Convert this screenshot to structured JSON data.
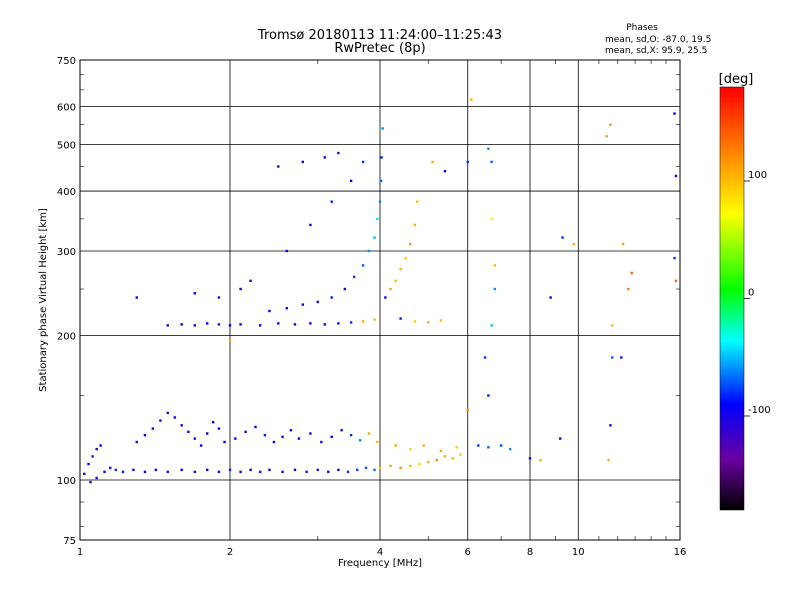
{
  "chart_data": {
    "type": "scatter",
    "title_line1": "Tromsø 20180113 11:24:00–11:25:43",
    "title_line2": "RwPretec (8p)",
    "xlabel": "Frequency [MHz]",
    "ylabel": "Stationary phase Virtual Height [km]",
    "x_scale": "log",
    "y_scale": "log",
    "xlim": [
      1,
      16
    ],
    "ylim": [
      75,
      750
    ],
    "x_ticks": [
      1,
      2,
      4,
      6,
      8,
      10,
      16
    ],
    "y_ticks": [
      75,
      100,
      200,
      300,
      400,
      500,
      600,
      750
    ],
    "grid": true,
    "stats": {
      "title": "Phases",
      "line_o": "mean, sd,O: -87.0, 19.5",
      "line_x": "mean, sd,X:  95.9, 25.5"
    },
    "colorbar": {
      "label": "[deg]",
      "range": [
        -180,
        180
      ],
      "ticks": [
        100,
        0,
        -100
      ],
      "tick_labels": [
        "100",
        "0",
        "-100"
      ]
    },
    "series": [
      {
        "points": [
          [
            1.02,
            103,
            -95
          ],
          [
            1.04,
            108,
            -90
          ],
          [
            1.06,
            112,
            -85
          ],
          [
            1.08,
            116,
            -100
          ],
          [
            1.1,
            118,
            -92
          ],
          [
            1.05,
            99,
            -110
          ],
          [
            1.08,
            101,
            -105
          ],
          [
            1.12,
            104,
            -90
          ],
          [
            1.15,
            106,
            -88
          ],
          [
            1.18,
            105,
            -80
          ],
          [
            1.22,
            104,
            -85
          ],
          [
            1.28,
            105,
            -92
          ],
          [
            1.35,
            104,
            -90
          ],
          [
            1.42,
            105,
            -95
          ],
          [
            1.5,
            104,
            -88
          ],
          [
            1.6,
            105,
            -90
          ],
          [
            1.7,
            104,
            -86
          ],
          [
            1.8,
            105,
            -92
          ],
          [
            1.9,
            104,
            -90
          ],
          [
            2.0,
            105,
            -84
          ],
          [
            2.1,
            104,
            -88
          ],
          [
            2.2,
            105,
            -90
          ],
          [
            2.3,
            104,
            -86
          ],
          [
            2.4,
            105,
            -92
          ],
          [
            2.55,
            104,
            -88
          ],
          [
            2.7,
            105,
            -90
          ],
          [
            2.85,
            104,
            -84
          ],
          [
            3.0,
            105,
            -86
          ],
          [
            3.15,
            104,
            -90
          ],
          [
            3.3,
            105,
            -88
          ],
          [
            3.45,
            104,
            -80
          ],
          [
            3.6,
            105,
            -75
          ],
          [
            3.75,
            106,
            -70
          ],
          [
            3.9,
            105,
            -65
          ],
          [
            4.0,
            106,
            100
          ],
          [
            4.2,
            107,
            110
          ],
          [
            4.4,
            106,
            120
          ],
          [
            4.6,
            107,
            100
          ],
          [
            4.8,
            108,
            90
          ],
          [
            5.0,
            109,
            110
          ],
          [
            5.2,
            110,
            120
          ],
          [
            5.4,
            112,
            105
          ],
          [
            5.6,
            111,
            100
          ],
          [
            5.8,
            113,
            95
          ],
          [
            1.3,
            120,
            -100
          ],
          [
            1.35,
            124,
            -95
          ],
          [
            1.4,
            128,
            -105
          ],
          [
            1.45,
            133,
            -100
          ],
          [
            1.5,
            138,
            -110
          ],
          [
            1.55,
            135,
            -98
          ],
          [
            1.6,
            130,
            -102
          ],
          [
            1.65,
            126,
            -95
          ],
          [
            1.7,
            122,
            -100
          ],
          [
            1.75,
            118,
            -90
          ],
          [
            1.8,
            125,
            -95
          ],
          [
            1.85,
            132,
            -105
          ],
          [
            1.9,
            128,
            -100
          ],
          [
            1.95,
            120,
            -92
          ],
          [
            2.05,
            122,
            -95
          ],
          [
            2.15,
            126,
            -100
          ],
          [
            2.25,
            129,
            -90
          ],
          [
            2.35,
            124,
            -85
          ],
          [
            2.45,
            120,
            -92
          ],
          [
            2.55,
            123,
            -95
          ],
          [
            2.65,
            127,
            -88
          ],
          [
            2.75,
            122,
            -90
          ],
          [
            2.9,
            125,
            -95
          ],
          [
            3.05,
            120,
            -88
          ],
          [
            3.2,
            123,
            -90
          ],
          [
            3.35,
            127,
            -85
          ],
          [
            3.5,
            124,
            -80
          ],
          [
            3.65,
            121,
            -60
          ],
          [
            3.8,
            125,
            110
          ],
          [
            3.95,
            120,
            100
          ],
          [
            4.3,
            118,
            115
          ],
          [
            4.6,
            116,
            90
          ],
          [
            4.9,
            118,
            105
          ],
          [
            5.3,
            115,
            110
          ],
          [
            5.7,
            117,
            95
          ],
          [
            6.3,
            118,
            -80
          ],
          [
            6.6,
            117,
            -70
          ],
          [
            7.0,
            118,
            -75
          ],
          [
            7.3,
            116,
            -60
          ],
          [
            8.0,
            111,
            -90
          ],
          [
            8.4,
            110,
            110
          ],
          [
            9.2,
            122,
            -100
          ],
          [
            1.5,
            210,
            -100
          ],
          [
            1.6,
            211,
            -95
          ],
          [
            1.7,
            210,
            -100
          ],
          [
            1.8,
            212,
            -90
          ],
          [
            1.9,
            211,
            -95
          ],
          [
            2.0,
            210,
            -100
          ],
          [
            2.1,
            211,
            -92
          ],
          [
            2.3,
            210,
            -95
          ],
          [
            2.5,
            212,
            -90
          ],
          [
            2.7,
            211,
            -98
          ],
          [
            2.9,
            212,
            -95
          ],
          [
            3.1,
            211,
            -90
          ],
          [
            3.3,
            212,
            -92
          ],
          [
            3.5,
            213,
            -80
          ],
          [
            3.7,
            214,
            110
          ],
          [
            3.9,
            216,
            100
          ],
          [
            4.4,
            217,
            -85
          ],
          [
            4.7,
            214,
            95
          ],
          [
            5.0,
            213,
            110
          ],
          [
            5.3,
            215,
            100
          ],
          [
            2.4,
            225,
            -95
          ],
          [
            2.6,
            228,
            -100
          ],
          [
            2.8,
            232,
            -90
          ],
          [
            3.0,
            235,
            -95
          ],
          [
            3.2,
            240,
            -85
          ],
          [
            3.4,
            250,
            -90
          ],
          [
            3.55,
            265,
            -80
          ],
          [
            3.7,
            280,
            -70
          ],
          [
            3.8,
            300,
            -60
          ],
          [
            3.9,
            320,
            -50
          ],
          [
            3.95,
            350,
            -40
          ],
          [
            4.0,
            380,
            -60
          ],
          [
            4.02,
            420,
            -70
          ],
          [
            4.03,
            470,
            -80
          ],
          [
            4.05,
            540,
            -60
          ],
          [
            4.1,
            240,
            -95
          ],
          [
            4.2,
            250,
            110
          ],
          [
            4.3,
            260,
            100
          ],
          [
            4.4,
            275,
            105
          ],
          [
            4.5,
            290,
            95
          ],
          [
            4.6,
            310,
            120
          ],
          [
            4.7,
            340,
            110
          ],
          [
            4.75,
            380,
            100
          ],
          [
            2.2,
            260,
            -100
          ],
          [
            2.6,
            300,
            -95
          ],
          [
            2.9,
            340,
            -90
          ],
          [
            3.2,
            380,
            -85
          ],
          [
            3.5,
            420,
            -90
          ],
          [
            3.7,
            460,
            -80
          ],
          [
            2.5,
            450,
            -100
          ],
          [
            2.8,
            460,
            -95
          ],
          [
            3.1,
            470,
            -90
          ],
          [
            3.3,
            480,
            -105
          ],
          [
            5.1,
            460,
            110
          ],
          [
            5.4,
            440,
            -95
          ],
          [
            6.0,
            460,
            -80
          ],
          [
            6.1,
            620,
            110
          ],
          [
            6.6,
            490,
            -60
          ],
          [
            6.7,
            460,
            -70
          ],
          [
            6.7,
            350,
            80
          ],
          [
            6.8,
            280,
            100
          ],
          [
            6.8,
            250,
            -60
          ],
          [
            6.7,
            210,
            -50
          ],
          [
            6.5,
            180,
            -80
          ],
          [
            6.6,
            150,
            -85
          ],
          [
            6.0,
            140,
            120
          ],
          [
            1.3,
            240,
            -100
          ],
          [
            1.7,
            245,
            -95
          ],
          [
            1.9,
            240,
            -100
          ],
          [
            2.0,
            195,
            110
          ],
          [
            2.1,
            250,
            -90
          ],
          [
            9.3,
            320,
            -80
          ],
          [
            9.8,
            310,
            110
          ],
          [
            8.8,
            240,
            -90
          ],
          [
            11.4,
            520,
            110
          ],
          [
            11.6,
            550,
            115
          ],
          [
            11.7,
            210,
            100
          ],
          [
            11.7,
            180,
            -70
          ],
          [
            11.6,
            130,
            -100
          ],
          [
            11.5,
            110,
            110
          ],
          [
            12.2,
            180,
            -85
          ],
          [
            12.3,
            310,
            110
          ],
          [
            12.6,
            250,
            130
          ],
          [
            12.8,
            270,
            140
          ],
          [
            15.6,
            580,
            -90
          ],
          [
            15.7,
            430,
            -95
          ],
          [
            15.6,
            290,
            -80
          ],
          [
            15.7,
            260,
            140
          ]
        ]
      }
    ]
  }
}
